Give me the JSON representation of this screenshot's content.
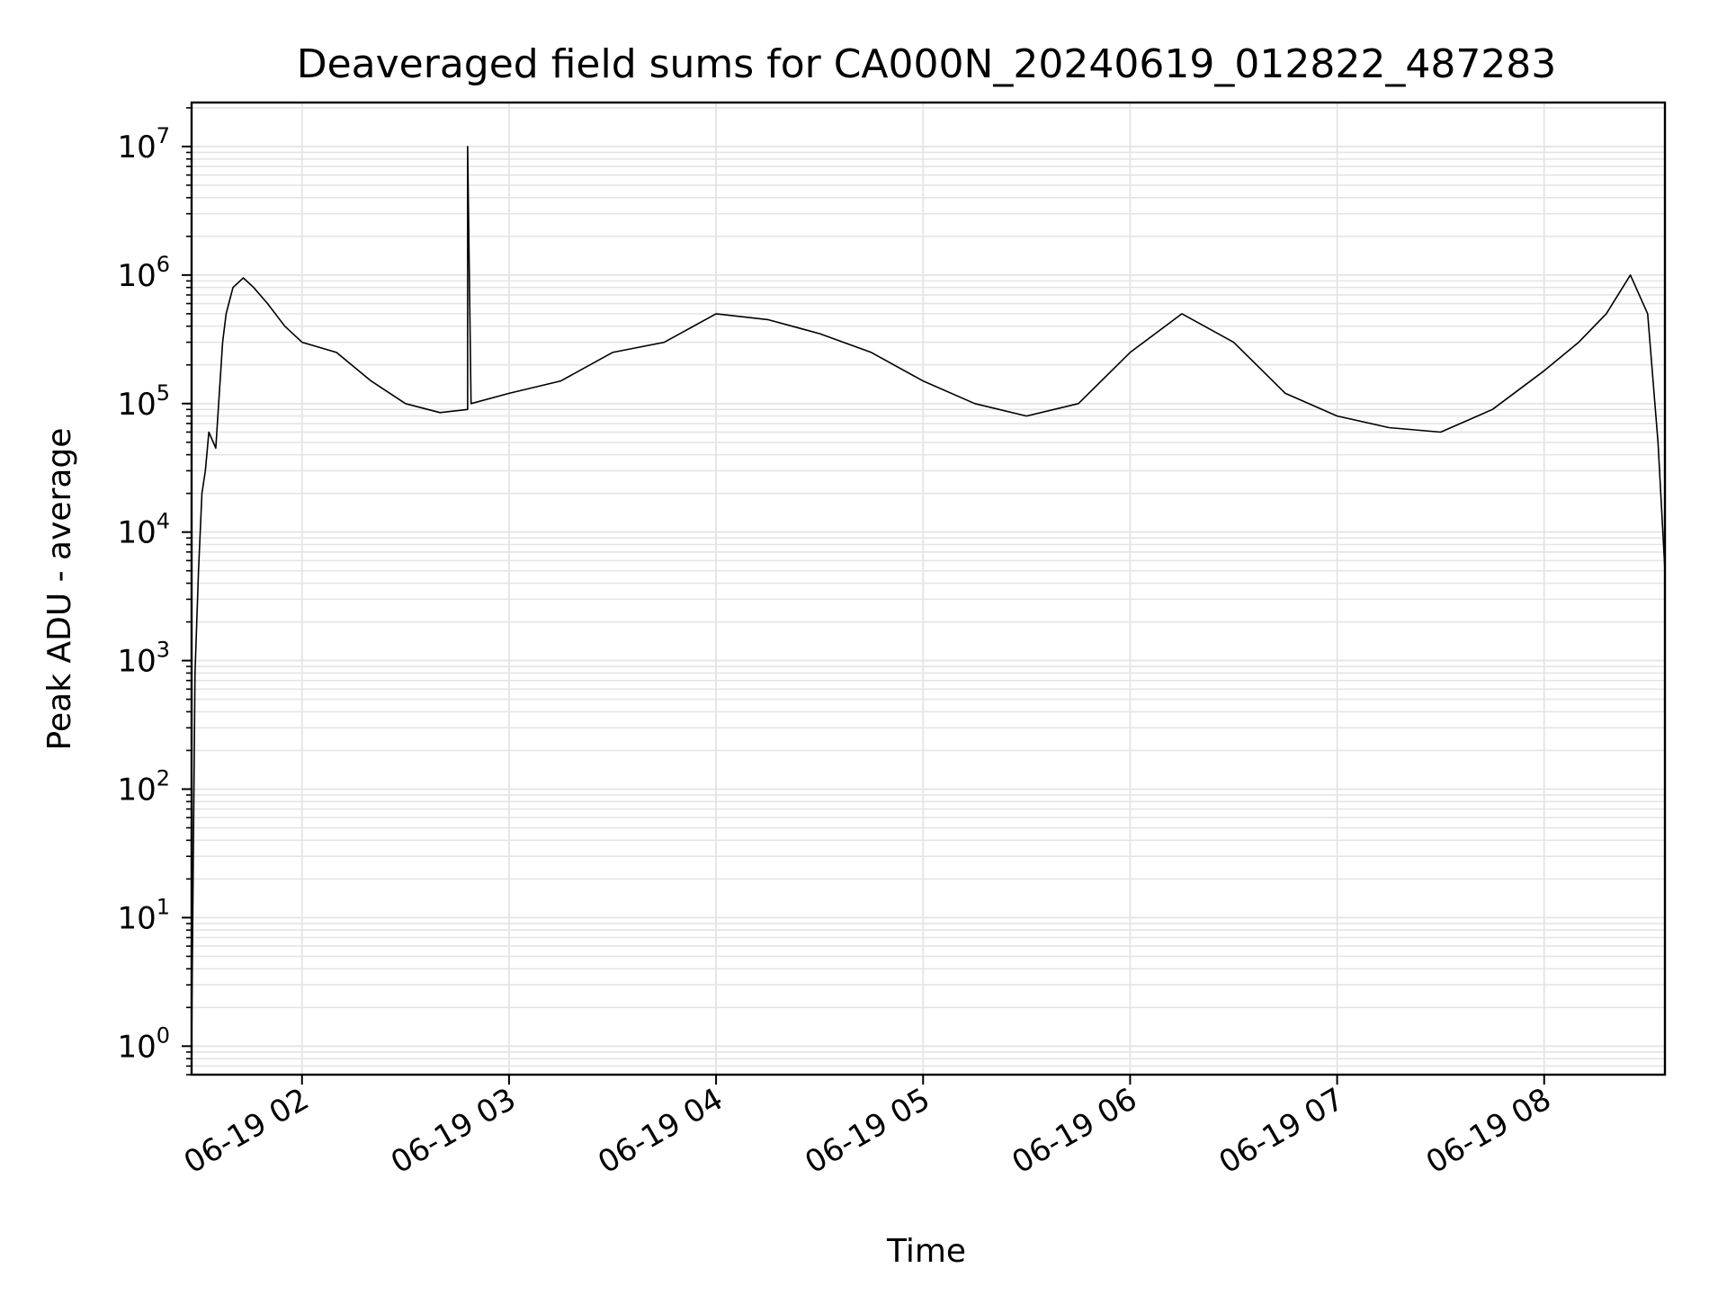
{
  "chart_data": {
    "type": "line",
    "title": "Deaveraged field sums for CA000N_20240619_012822_487283",
    "xlabel": "Time",
    "ylabel": "Peak ADU - average",
    "y_scale": "log",
    "ylim": [
      0.6,
      22000000
    ],
    "xlim": [
      "06-19 01:28",
      "06-19 08:35"
    ],
    "grid": true,
    "legend": "none",
    "line_color": "#000000",
    "grid_color": "#e4e4e4",
    "x_ticks": [
      {
        "t": "06-19 02:00",
        "label": "06-19 02"
      },
      {
        "t": "06-19 03:00",
        "label": "06-19 03"
      },
      {
        "t": "06-19 04:00",
        "label": "06-19 04"
      },
      {
        "t": "06-19 05:00",
        "label": "06-19 05"
      },
      {
        "t": "06-19 06:00",
        "label": "06-19 06"
      },
      {
        "t": "06-19 07:00",
        "label": "06-19 07"
      },
      {
        "t": "06-19 08:00",
        "label": "06-19 08"
      }
    ],
    "y_ticks": [
      {
        "value": 1,
        "base": "10",
        "exp": "0"
      },
      {
        "value": 10,
        "base": "10",
        "exp": "1"
      },
      {
        "value": 100,
        "base": "10",
        "exp": "2"
      },
      {
        "value": 1000,
        "base": "10",
        "exp": "3"
      },
      {
        "value": 10000,
        "base": "10",
        "exp": "4"
      },
      {
        "value": 100000,
        "base": "10",
        "exp": "5"
      },
      {
        "value": 1000000,
        "base": "10",
        "exp": "6"
      },
      {
        "value": 10000000,
        "base": "10",
        "exp": "7"
      }
    ],
    "series": [
      {
        "x": [
          "06-19 01:28",
          "06-19 01:29",
          "06-19 01:30",
          "06-19 01:31",
          "06-19 01:32",
          "06-19 01:33",
          "06-19 01:35",
          "06-19 01:37",
          "06-19 01:38",
          "06-19 01:40",
          "06-19 01:43",
          "06-19 01:46",
          "06-19 01:50",
          "06-19 01:55",
          "06-19 02:00",
          "06-19 02:10",
          "06-19 02:20",
          "06-19 02:30",
          "06-19 02:40",
          "06-19 02:48",
          "06-19 02:48",
          "06-19 02:49",
          "06-19 03:00",
          "06-19 03:15",
          "06-19 03:30",
          "06-19 03:45",
          "06-19 04:00",
          "06-19 04:15",
          "06-19 04:30",
          "06-19 04:45",
          "06-19 05:00",
          "06-19 05:15",
          "06-19 05:30",
          "06-19 05:45",
          "06-19 06:00",
          "06-19 06:15",
          "06-19 06:30",
          "06-19 06:45",
          "06-19 07:00",
          "06-19 07:15",
          "06-19 07:30",
          "06-19 07:45",
          "06-19 08:00",
          "06-19 08:10",
          "06-19 08:18",
          "06-19 08:25",
          "06-19 08:30",
          "06-19 08:33",
          "06-19 08:35"
        ],
        "y": [
          1,
          800,
          5000,
          20000,
          30000,
          60000,
          45000,
          300000,
          500000,
          800000,
          950000,
          800000,
          600000,
          400000,
          300000,
          250000,
          150000,
          100000,
          85000,
          90000,
          10000000,
          100000,
          120000,
          150000,
          250000,
          300000,
          500000,
          450000,
          350000,
          250000,
          150000,
          100000,
          80000,
          100000,
          250000,
          500000,
          300000,
          120000,
          80000,
          65000,
          60000,
          90000,
          180000,
          300000,
          500000,
          1000000,
          500000,
          50000,
          5000
        ]
      }
    ]
  }
}
